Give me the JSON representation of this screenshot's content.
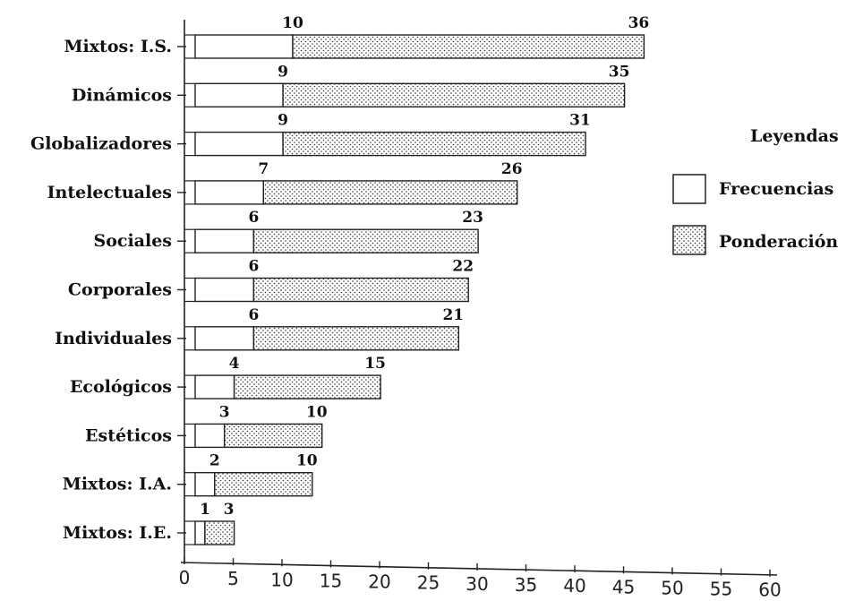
{
  "chart_data": {
    "type": "bar",
    "orientation": "horizontal",
    "stacked": true,
    "categories": [
      "Mixtos: I.S.",
      "Dinámicos",
      "Globalizadores",
      "Intelectuales",
      "Sociales",
      "Corporales",
      "Individuales",
      "Ecológicos",
      "Estéticos",
      "Mixtos: I.A.",
      "Mixtos: I.E."
    ],
    "series": [
      {
        "name": "Frecuencias",
        "values": [
          10,
          9,
          9,
          7,
          6,
          6,
          6,
          4,
          3,
          2,
          1
        ],
        "pattern": "none",
        "color": "#ffffff"
      },
      {
        "name": "Ponderación",
        "values": [
          36,
          35,
          31,
          26,
          23,
          22,
          21,
          15,
          10,
          10,
          3
        ],
        "pattern": "dots",
        "color": "#ffffff"
      }
    ],
    "xticks": [
      0,
      5,
      10,
      15,
      20,
      25,
      30,
      35,
      40,
      45,
      50,
      55,
      60
    ],
    "xlim": [
      0,
      60
    ],
    "legend": {
      "title": "Leyendas",
      "position": "right"
    },
    "grid": false
  }
}
